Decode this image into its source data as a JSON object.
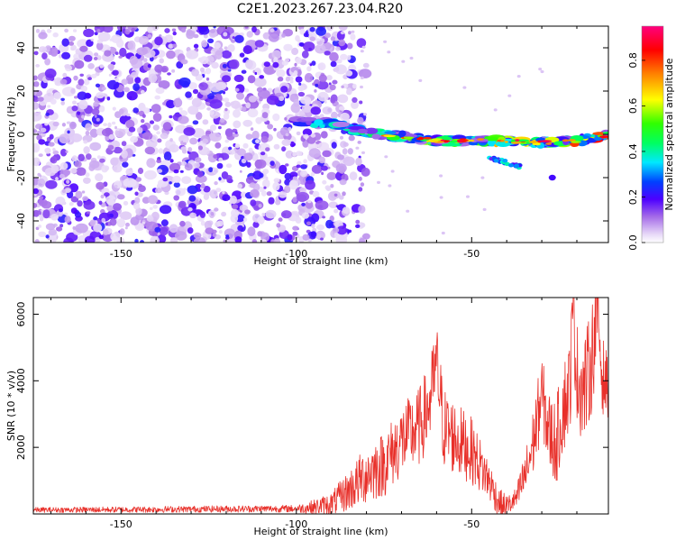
{
  "title": "C2E1.2023.267.23.04.R20",
  "colors": {
    "background": "#ffffff",
    "snr_line": "#e8302a",
    "axes": "#000000"
  },
  "chart_data": [
    {
      "type": "heatmap",
      "name": "spectrogram",
      "xlabel": "Height of straight line (km)",
      "ylabel": "Frequency (Hz)",
      "xlim": [
        -175,
        -11
      ],
      "ylim": [
        -50,
        50
      ],
      "x_ticks": [
        -150,
        -100,
        -50
      ],
      "x_tick_labels": [
        "-150",
        "-100",
        "-50"
      ],
      "y_ticks": [
        -40,
        -20,
        0,
        20,
        40
      ],
      "y_tick_labels": [
        "-40",
        "-20",
        "0",
        "20",
        "40"
      ],
      "noise_region_km": [
        -175,
        -84
      ],
      "signal_track": {
        "description": "strong return band drifting toward 0 Hz",
        "points": [
          {
            "x": -100,
            "y": 6
          },
          {
            "x": -90,
            "y": 5
          },
          {
            "x": -80,
            "y": 1
          },
          {
            "x": -70,
            "y": -1
          },
          {
            "x": -60,
            "y": -3
          },
          {
            "x": -50,
            "y": -3
          },
          {
            "x": -40,
            "y": -3
          },
          {
            "x": -30,
            "y": -4
          },
          {
            "x": -20,
            "y": -3
          },
          {
            "x": -11,
            "y": 0
          }
        ],
        "secondary_branch": [
          {
            "x": -45,
            "y": -11
          },
          {
            "x": -40,
            "y": -13
          },
          {
            "x": -36,
            "y": -15
          }
        ],
        "isolated_point": {
          "x": -27,
          "y": -20
        }
      },
      "colorbar": {
        "label": "Normalized spectral amplitude",
        "range": [
          0.0,
          0.95
        ],
        "ticks": [
          0.0,
          0.2,
          0.4,
          0.6,
          0.8
        ],
        "tick_labels": [
          "0.0",
          "0.2",
          "0.4",
          "0.6",
          "0.8"
        ]
      }
    },
    {
      "type": "line",
      "name": "snr",
      "xlabel": "Height of straight line (km)",
      "ylabel": "SNR (10 * v/v)",
      "xlim": [
        -175,
        -11
      ],
      "ylim": [
        0,
        6500
      ],
      "x_ticks": [
        -150,
        -100,
        -50
      ],
      "x_tick_labels": [
        "-150",
        "-100",
        "-50"
      ],
      "y_ticks": [
        2000,
        4000,
        6000
      ],
      "y_tick_labels": [
        "2000",
        "4000",
        "6000"
      ],
      "envelope": {
        "x": [
          -175,
          -150,
          -120,
          -100,
          -95,
          -90,
          -85,
          -80,
          -75,
          -70,
          -65,
          -62,
          -60,
          -58,
          -55,
          -50,
          -45,
          -42,
          -40,
          -37,
          -34,
          -32,
          -30,
          -28,
          -26,
          -24,
          -22,
          -21,
          -20,
          -18,
          -16,
          -14,
          -13,
          -12,
          -11
        ],
        "y": [
          120,
          130,
          150,
          160,
          200,
          300,
          700,
          1200,
          1500,
          2200,
          2600,
          3300,
          4500,
          2600,
          2300,
          1900,
          1000,
          300,
          200,
          500,
          1400,
          2400,
          3600,
          2500,
          2100,
          3200,
          3800,
          6300,
          4200,
          3700,
          4500,
          6200,
          4300,
          4000,
          3800
        ]
      },
      "noise_amplitude": {
        "x": [
          -175,
          -100,
          -90,
          -80,
          -60,
          -50,
          -43,
          -38,
          -32,
          -26,
          -20,
          -15,
          -11
        ],
        "y": [
          80,
          110,
          350,
          900,
          1300,
          1000,
          500,
          300,
          1100,
          1300,
          1600,
          1600,
          900
        ]
      }
    }
  ]
}
